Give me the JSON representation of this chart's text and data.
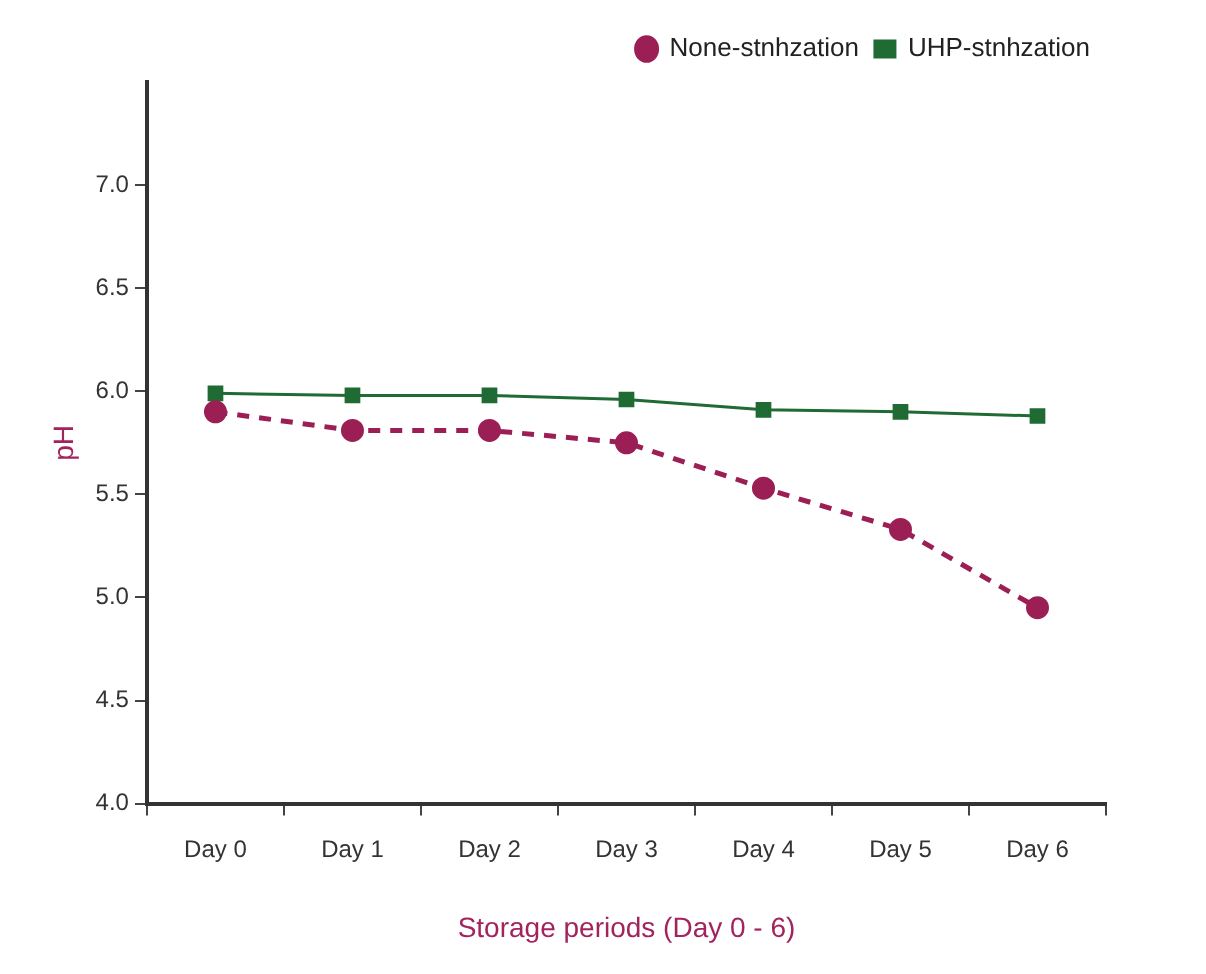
{
  "chart_data": {
    "type": "line",
    "xlabel": "Storage periods (Day 0 - 6)",
    "ylabel": "pH",
    "categories": [
      "Day 0",
      "Day 1",
      "Day 2",
      "Day 3",
      "Day 4",
      "Day 5",
      "Day 6"
    ],
    "series": [
      {
        "name": "None-stnhzation",
        "color": "#9b1f55",
        "values": [
          5.9,
          5.81,
          5.81,
          5.75,
          5.53,
          5.33,
          4.95
        ],
        "marker": "circle",
        "line_style": "dashed"
      },
      {
        "name": "UHP-stnhzation",
        "color": "#1f6b33",
        "values": [
          5.99,
          5.98,
          5.98,
          5.96,
          5.91,
          5.9,
          5.88
        ],
        "marker": "square",
        "line_style": "solid"
      }
    ],
    "ylim": [
      4,
      7.5
    ],
    "yticks": [
      {
        "value": 4,
        "label": "4.0"
      },
      {
        "value": 4.5,
        "label": "4.5"
      },
      {
        "value": 5,
        "label": "5.0"
      },
      {
        "value": 5.5,
        "label": "5.5"
      },
      {
        "value": 6,
        "label": "6.0"
      },
      {
        "value": 6.5,
        "label": "6.5"
      },
      {
        "value": 7,
        "label": "7.0"
      }
    ],
    "grid": false,
    "legend": "top right"
  }
}
